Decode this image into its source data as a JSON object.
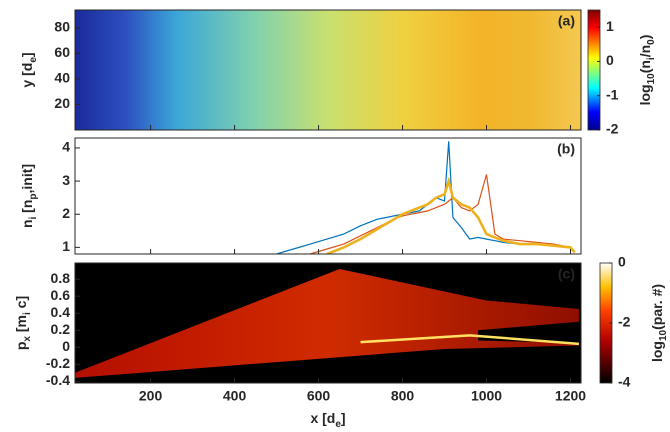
{
  "chart_data": [
    {
      "type": "heatmap",
      "panel_label": "(a)",
      "ylabel": [
        "y [d",
        "e",
        "]"
      ],
      "xlim": [
        20,
        1225
      ],
      "ylim": [
        0,
        94
      ],
      "yticks": [
        20,
        40,
        60,
        80
      ],
      "clim": [
        -2,
        1.5
      ],
      "cticks": [
        -2,
        -1,
        0,
        1
      ],
      "clabel": [
        "log",
        "10",
        "(n",
        "i",
        "/n",
        "0",
        ")"
      ],
      "colormap": "jet"
    },
    {
      "type": "line",
      "panel_label": "(b)",
      "ylabel": [
        "n",
        "i",
        " [n",
        "p",
        ",init]"
      ],
      "xlim": [
        20,
        1225
      ],
      "ylim": [
        0.8,
        4.3
      ],
      "yticks": [
        1,
        2,
        3,
        4
      ],
      "x": [
        500,
        540,
        580,
        620,
        660,
        700,
        740,
        780,
        800,
        820,
        840,
        860,
        880,
        900,
        910,
        920,
        940,
        960,
        980,
        1000,
        1020,
        1040,
        1080,
        1120,
        1160,
        1200,
        1210
      ],
      "series": [
        {
          "color": "#0072bd",
          "line_width": 1.2,
          "values": [
            0.8,
            0.95,
            1.1,
            1.25,
            1.4,
            1.65,
            1.85,
            1.95,
            2.0,
            2.05,
            2.1,
            2.3,
            2.5,
            2.4,
            4.2,
            1.9,
            1.6,
            1.25,
            1.3,
            1.25,
            1.2,
            1.15,
            1.1,
            1.1,
            1.05,
            1.0,
            0.85
          ]
        },
        {
          "color": "#d95319",
          "line_width": 1.2,
          "values": [
            null,
            null,
            0.8,
            0.95,
            1.1,
            1.35,
            1.6,
            1.85,
            1.95,
            2.0,
            2.05,
            2.1,
            2.2,
            2.3,
            2.4,
            2.5,
            2.2,
            2.1,
            2.3,
            3.2,
            1.4,
            1.25,
            1.2,
            1.15,
            1.1,
            1.0,
            0.85
          ]
        },
        {
          "color": "#edb120",
          "line_width": 2.6,
          "values": [
            null,
            null,
            null,
            0.8,
            1.0,
            1.25,
            1.55,
            1.85,
            2.0,
            2.1,
            2.2,
            2.3,
            2.5,
            2.6,
            3.0,
            2.5,
            2.3,
            2.2,
            1.9,
            1.4,
            1.3,
            1.2,
            1.1,
            1.1,
            1.05,
            1.0,
            0.85
          ]
        }
      ]
    },
    {
      "type": "heatmap",
      "panel_label": "(c)",
      "ylabel": [
        "p",
        "x",
        " [m",
        "i",
        " c]"
      ],
      "xlabel": [
        "x [d",
        "e",
        "]"
      ],
      "xlim": [
        20,
        1225
      ],
      "xticks": [
        200,
        400,
        600,
        800,
        1000,
        1200
      ],
      "ylim": [
        -0.42,
        0.99
      ],
      "yticks": [
        -0.4,
        -0.2,
        0,
        0.2,
        0.4,
        0.6,
        0.8
      ],
      "clim": [
        -4,
        0
      ],
      "cticks": [
        -4,
        -2,
        0
      ],
      "clabel": [
        "log",
        "10",
        "(par. #)"
      ],
      "colormap": "hot"
    }
  ]
}
